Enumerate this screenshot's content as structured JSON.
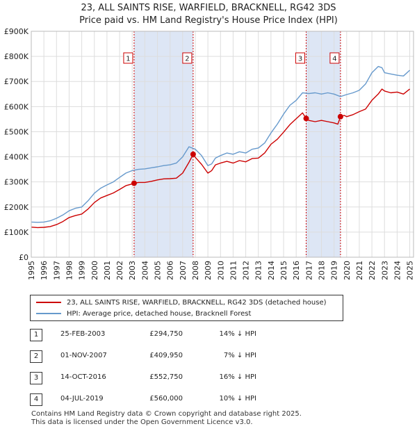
{
  "title_line1": "23, ALL SAINTS RISE, WARFIELD, BRACKNELL, RG42 3DS",
  "title_line2": "Price paid vs. HM Land Registry's House Price Index (HPI)",
  "colors": {
    "property": "#cc0000",
    "hpi": "#6699cc",
    "shade": "#dde6f5",
    "grid": "#dddddd"
  },
  "chart_data": {
    "type": "line",
    "ylim": [
      0,
      900000
    ],
    "xlim": [
      1995,
      2025.3
    ],
    "y_ticks": [
      {
        "value": 0,
        "label": "£0"
      },
      {
        "value": 100000,
        "label": "£100K"
      },
      {
        "value": 200000,
        "label": "£200K"
      },
      {
        "value": 300000,
        "label": "£300K"
      },
      {
        "value": 400000,
        "label": "£400K"
      },
      {
        "value": 500000,
        "label": "£500K"
      },
      {
        "value": 600000,
        "label": "£600K"
      },
      {
        "value": 700000,
        "label": "£700K"
      },
      {
        "value": 800000,
        "label": "£800K"
      },
      {
        "value": 900000,
        "label": "£900K"
      }
    ],
    "x_ticks": [
      "1995",
      "1996",
      "1997",
      "1998",
      "1999",
      "2000",
      "2001",
      "2002",
      "2003",
      "2004",
      "2005",
      "2006",
      "2007",
      "2008",
      "2009",
      "2010",
      "2011",
      "2012",
      "2013",
      "2014",
      "2015",
      "2016",
      "2017",
      "2018",
      "2019",
      "2020",
      "2021",
      "2022",
      "2023",
      "2024",
      "2025"
    ],
    "shaded_ranges": [
      [
        2003.15,
        2007.83
      ],
      [
        2016.79,
        2019.51
      ]
    ],
    "series": [
      {
        "name": "23, ALL SAINTS RISE, WARFIELD, BRACKNELL, RG42 3DS (detached house)",
        "color": "#cc0000",
        "x": [
          1995,
          1995.5,
          1996,
          1996.5,
          1997,
          1997.5,
          1998,
          1998.5,
          1999,
          1999.5,
          2000,
          2000.5,
          2001,
          2001.5,
          2002,
          2002.5,
          2003,
          2003.15,
          2003.5,
          2004,
          2004.5,
          2005,
          2005.5,
          2006,
          2006.5,
          2007,
          2007.5,
          2007.83,
          2008,
          2008.5,
          2009,
          2009.3,
          2009.6,
          2010,
          2010.5,
          2011,
          2011.5,
          2012,
          2012.5,
          2013,
          2013.5,
          2014,
          2014.5,
          2015,
          2015.5,
          2016,
          2016.5,
          2016.79,
          2017,
          2017.5,
          2018,
          2018.5,
          2019,
          2019.3,
          2019.51,
          2019.8,
          2020,
          2020.5,
          2021,
          2021.5,
          2022,
          2022.5,
          2022.8,
          2023,
          2023.5,
          2024,
          2024.5,
          2025
        ],
        "values": [
          120000,
          118000,
          119000,
          122000,
          130000,
          142000,
          158000,
          166000,
          172000,
          192000,
          218000,
          236000,
          246000,
          256000,
          270000,
          285000,
          292000,
          294750,
          298000,
          298000,
          302000,
          308000,
          312000,
          313000,
          315000,
          335000,
          378000,
          409950,
          398000,
          370000,
          335000,
          345000,
          368000,
          375000,
          382000,
          375000,
          385000,
          380000,
          393000,
          395000,
          415000,
          450000,
          470000,
          498000,
          528000,
          552000,
          575000,
          552750,
          545000,
          540000,
          545000,
          540000,
          535000,
          530000,
          560000,
          565000,
          560000,
          568000,
          580000,
          590000,
          625000,
          650000,
          670000,
          662000,
          655000,
          658000,
          650000,
          670000
        ]
      },
      {
        "name": "HPI: Average price, detached house, Bracknell Forest",
        "color": "#6699cc",
        "x": [
          1995,
          1995.5,
          1996,
          1996.5,
          1997,
          1997.5,
          1998,
          1998.5,
          1999,
          1999.5,
          2000,
          2000.5,
          2001,
          2001.5,
          2002,
          2002.5,
          2003,
          2003.5,
          2004,
          2004.5,
          2005,
          2005.5,
          2006,
          2006.5,
          2007,
          2007.5,
          2008,
          2008.5,
          2009,
          2009.3,
          2009.6,
          2010,
          2010.5,
          2011,
          2011.5,
          2012,
          2012.5,
          2013,
          2013.5,
          2014,
          2014.5,
          2015,
          2015.5,
          2016,
          2016.5,
          2017,
          2017.5,
          2018,
          2018.5,
          2019,
          2019.5,
          2020,
          2020.5,
          2021,
          2021.5,
          2022,
          2022.5,
          2022.8,
          2023,
          2023.5,
          2024,
          2024.5,
          2025
        ],
        "values": [
          140000,
          139000,
          140000,
          145000,
          155000,
          168000,
          185000,
          195000,
          200000,
          225000,
          255000,
          275000,
          288000,
          300000,
          318000,
          335000,
          345000,
          350000,
          352000,
          356000,
          360000,
          365000,
          368000,
          375000,
          400000,
          440000,
          430000,
          405000,
          365000,
          372000,
          395000,
          405000,
          415000,
          410000,
          420000,
          415000,
          430000,
          435000,
          455000,
          495000,
          530000,
          570000,
          605000,
          625000,
          655000,
          652000,
          655000,
          650000,
          655000,
          650000,
          640000,
          648000,
          655000,
          665000,
          690000,
          735000,
          760000,
          755000,
          735000,
          730000,
          725000,
          722000,
          745000
        ]
      }
    ],
    "sales": [
      {
        "num": "1",
        "x": 2003.15,
        "value": 294750
      },
      {
        "num": "2",
        "x": 2007.83,
        "value": 409950
      },
      {
        "num": "3",
        "x": 2016.79,
        "value": 552750
      },
      {
        "num": "4",
        "x": 2019.51,
        "value": 560000
      }
    ]
  },
  "legend": {
    "property_label": "23, ALL SAINTS RISE, WARFIELD, BRACKNELL, RG42 3DS (detached house)",
    "hpi_label": "HPI: Average price, detached house, Bracknell Forest"
  },
  "transactions": [
    {
      "num": "1",
      "date": "25-FEB-2003",
      "price": "£294,750",
      "hpi": "14% ↓ HPI"
    },
    {
      "num": "2",
      "date": "01-NOV-2007",
      "price": "£409,950",
      "hpi": "7% ↓ HPI"
    },
    {
      "num": "3",
      "date": "14-OCT-2016",
      "price": "£552,750",
      "hpi": "16% ↓ HPI"
    },
    {
      "num": "4",
      "date": "04-JUL-2019",
      "price": "£560,000",
      "hpi": "10% ↓ HPI"
    }
  ],
  "footer": {
    "line1": "Contains HM Land Registry data © Crown copyright and database right 2025.",
    "line2": "This data is licensed under the Open Government Licence v3.0."
  }
}
